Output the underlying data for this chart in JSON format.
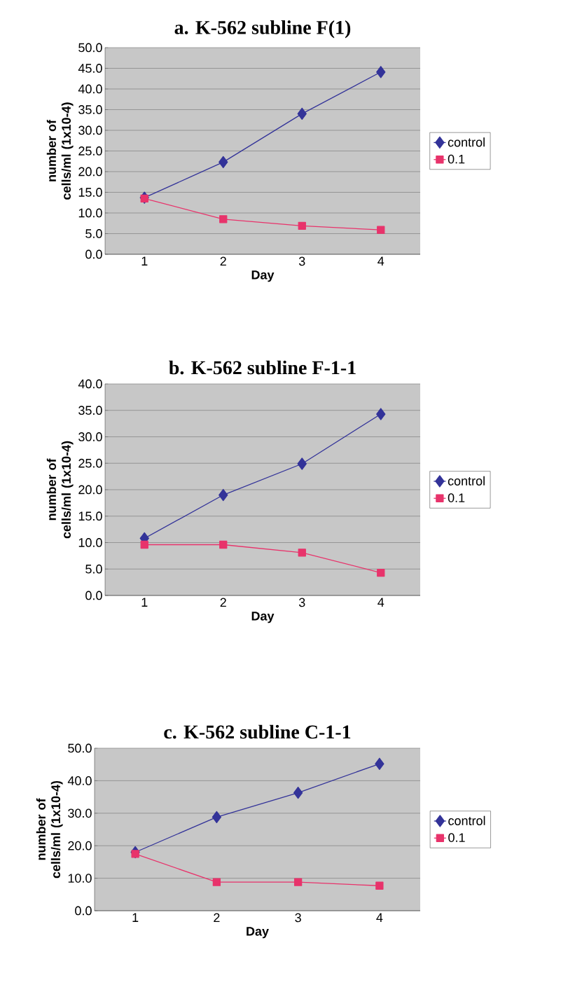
{
  "chart_data": [
    {
      "type": "line",
      "title": "a. K-562 subline F(1)",
      "xlabel": "Day",
      "ylabel": "number of cells/ml (1x10-4)",
      "categories": [
        "1",
        "2",
        "3",
        "4"
      ],
      "series": [
        {
          "name": "control",
          "color": "#333399",
          "marker": "diamond",
          "values": [
            13.7,
            22.3,
            34.0,
            44.1
          ]
        },
        {
          "name": "0.1",
          "color": "#e8336b",
          "marker": "square",
          "values": [
            13.5,
            8.5,
            6.9,
            5.9
          ]
        }
      ],
      "ylim": [
        0,
        50
      ],
      "yticks": [
        {
          "value": 0,
          "label": "0.0"
        },
        {
          "value": 5,
          "label": "5.0"
        },
        {
          "value": 10,
          "label": "10.0"
        },
        {
          "value": 15,
          "label": "15.0"
        },
        {
          "value": 20,
          "label": "20.0"
        },
        {
          "value": 25,
          "label": "25.0"
        },
        {
          "value": 30,
          "label": "30.0"
        },
        {
          "value": 35,
          "label": "35.0"
        },
        {
          "value": 40,
          "label": "40.0"
        },
        {
          "value": 45,
          "label": "45.0"
        },
        {
          "value": 50,
          "label": "50.0"
        }
      ],
      "grid": "y",
      "legend": "right",
      "line_style": "solid"
    },
    {
      "type": "line",
      "title": "b. K-562 subline F-1-1",
      "xlabel": "Day",
      "ylabel": "number of cells/ml (1x10-4)",
      "categories": [
        "1",
        "2",
        "3",
        "4"
      ],
      "series": [
        {
          "name": "control",
          "color": "#333399",
          "marker": "diamond",
          "values": [
            10.8,
            19.0,
            24.9,
            34.3
          ]
        },
        {
          "name": "0.1",
          "color": "#e8336b",
          "marker": "square",
          "values": [
            9.6,
            9.6,
            8.1,
            4.3
          ]
        }
      ],
      "ylim": [
        0,
        40
      ],
      "yticks": [
        {
          "value": 0,
          "label": "0.0"
        },
        {
          "value": 5,
          "label": "5.0"
        },
        {
          "value": 10,
          "label": "10.0"
        },
        {
          "value": 15,
          "label": "15.0"
        },
        {
          "value": 20,
          "label": "20.0"
        },
        {
          "value": 25,
          "label": "25.0"
        },
        {
          "value": 30,
          "label": "30.0"
        },
        {
          "value": 35,
          "label": "35.0"
        },
        {
          "value": 40,
          "label": "40.0"
        }
      ],
      "grid": "y",
      "legend": "right",
      "line_style": "solid"
    },
    {
      "type": "line",
      "title": "c. K-562 subline C-1-1",
      "xlabel": "Day",
      "ylabel": "number of cells/ml (1x10-4)",
      "categories": [
        "1",
        "2",
        "3",
        "4"
      ],
      "series": [
        {
          "name": "control",
          "color": "#333399",
          "marker": "diamond",
          "values": [
            18.0,
            28.8,
            36.3,
            45.2
          ]
        },
        {
          "name": "0.1",
          "color": "#e8336b",
          "marker": "square",
          "values": [
            17.5,
            8.8,
            8.8,
            7.7
          ]
        }
      ],
      "ylim": [
        0,
        50
      ],
      "yticks": [
        {
          "value": 0,
          "label": "0.0"
        },
        {
          "value": 10,
          "label": "10.0"
        },
        {
          "value": 20,
          "label": "20.0"
        },
        {
          "value": 30,
          "label": "30.0"
        },
        {
          "value": 40,
          "label": "40.0"
        },
        {
          "value": 50,
          "label": "50.0"
        }
      ],
      "grid": "y",
      "legend": "right",
      "line_style": "solid"
    }
  ]
}
